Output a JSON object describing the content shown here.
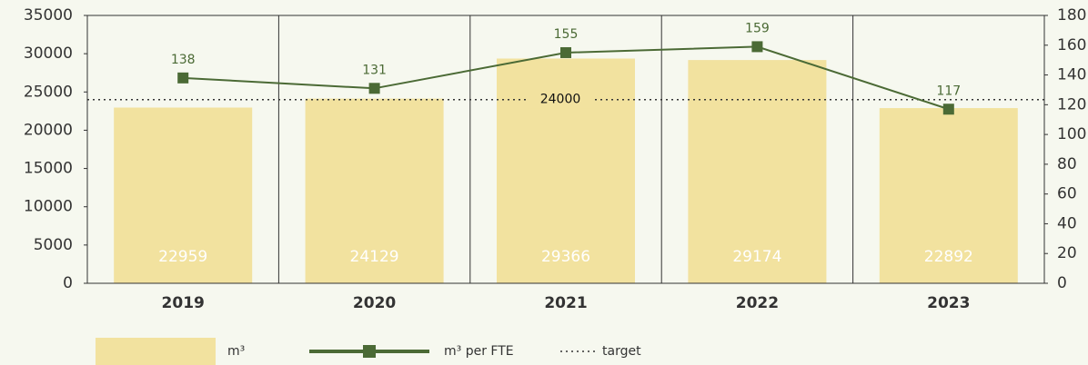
{
  "chart_data": {
    "type": "bar",
    "categories": [
      "2019",
      "2020",
      "2021",
      "2022",
      "2023"
    ],
    "series": [
      {
        "name": "m³",
        "type": "bar",
        "color": "#f2e29f",
        "values": [
          22959,
          24129,
          29366,
          29174,
          22892
        ]
      },
      {
        "name": "m³ per FTE",
        "type": "line",
        "color": "#4b6a35",
        "axis": "y2",
        "values": [
          138,
          131,
          155,
          159,
          117
        ]
      }
    ],
    "target": {
      "name": "target",
      "value": 24000
    },
    "ylim": [
      0,
      35000
    ],
    "yticks": [
      0,
      5000,
      10000,
      15000,
      20000,
      25000,
      30000,
      35000
    ],
    "y2lim": [
      0,
      180
    ],
    "y2ticks": [
      0,
      20,
      40,
      60,
      80,
      100,
      120,
      140,
      160,
      180
    ]
  }
}
